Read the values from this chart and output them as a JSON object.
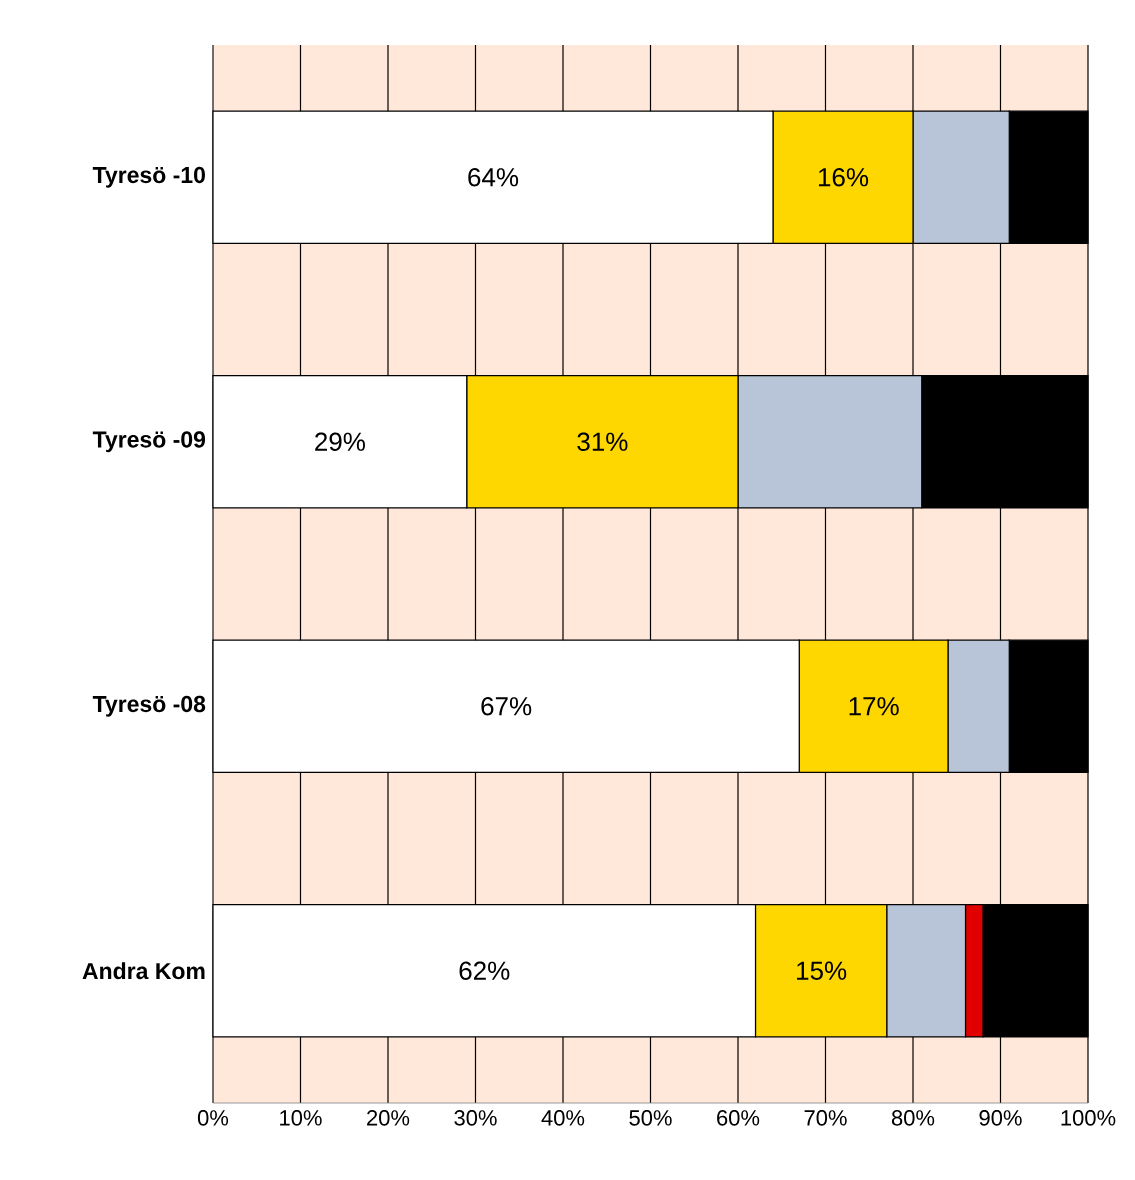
{
  "chart_data": {
    "type": "bar",
    "orientation": "horizontal",
    "stacked": true,
    "categories": [
      "Tyresö -10",
      "Tyresö -09",
      "Tyresö -08",
      "Andra Kom"
    ],
    "series": [
      {
        "color": "#ffffff",
        "values": [
          64,
          29,
          67,
          62
        ],
        "value_labels": [
          "64%",
          "29%",
          "67%",
          "62%"
        ]
      },
      {
        "color": "#ffd700",
        "values": [
          16,
          31,
          17,
          15
        ],
        "value_labels": [
          "16%",
          "31%",
          "17%",
          "15%"
        ]
      },
      {
        "color": "#b8c4d8",
        "values": [
          11,
          21,
          7,
          9
        ]
      },
      {
        "color": "#e00000",
        "values": [
          0,
          0,
          0,
          2
        ]
      },
      {
        "color": "#000000",
        "values": [
          9,
          19,
          9,
          12
        ]
      }
    ],
    "xlim": [
      0,
      100
    ],
    "xticks": [
      {
        "value": 0,
        "label": "0%"
      },
      {
        "value": 10,
        "label": "10%"
      },
      {
        "value": 20,
        "label": "20%"
      },
      {
        "value": 30,
        "label": "30%"
      },
      {
        "value": 40,
        "label": "40%"
      },
      {
        "value": 50,
        "label": "50%"
      },
      {
        "value": 60,
        "label": "60%"
      },
      {
        "value": 70,
        "label": "70%"
      },
      {
        "value": 80,
        "label": "80%"
      },
      {
        "value": 90,
        "label": "90%"
      },
      {
        "value": 100,
        "label": "100%"
      }
    ],
    "grid": "x"
  }
}
